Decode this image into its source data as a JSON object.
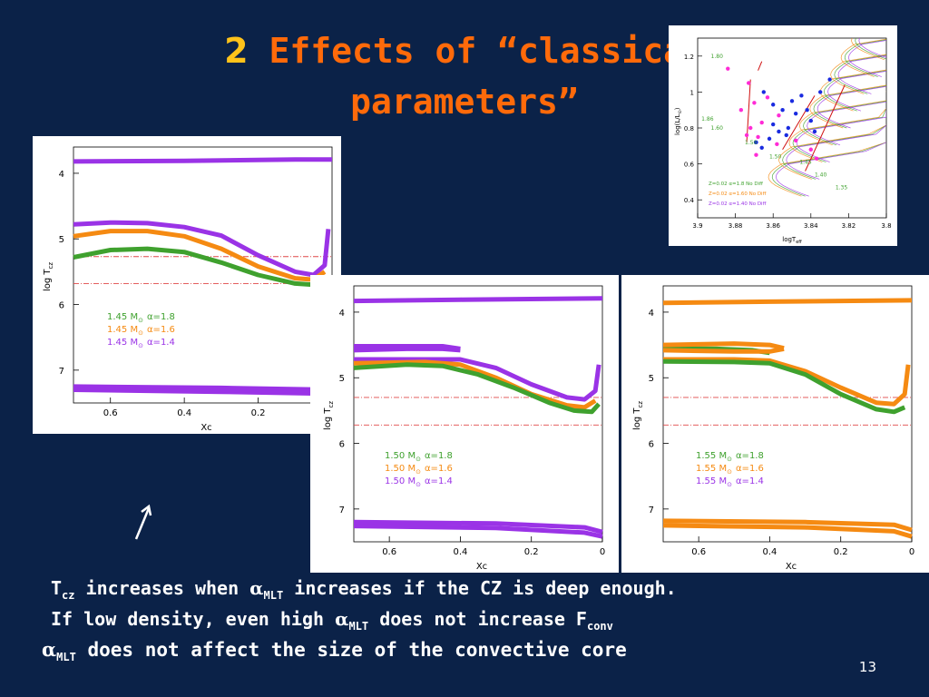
{
  "slide": {
    "title_num": "2",
    "title_line1": "Effects of “classical",
    "title_line2": "parameters”",
    "page_number": "13",
    "bullets": [
      {
        "pre": "T",
        "sub1": "cz",
        "mid": " increases when ",
        "alpha": "α",
        "sub2": "MLT",
        "post": " increases if the CZ is deep enough."
      },
      {
        "pre": "If low density, even high ",
        "alpha": "α",
        "sub2": "MLT",
        "mid": " does not increase F",
        "sub1": "conv",
        "post": ""
      },
      {
        "alpha": "α",
        "sub2": "MLT",
        "post": " does not affect the size of the convective core"
      }
    ]
  },
  "colors": {
    "background": "#0b2248",
    "title": "#ff6a0a",
    "title_num": "#ffc31a",
    "green": "#3fa12e",
    "orange": "#f58a12",
    "purple": "#9a33e6",
    "ref_line": "#e04848",
    "text": "#ffffff"
  },
  "chart_data": [
    {
      "id": "panel-145",
      "type": "line",
      "xlabel": "Xc",
      "ylabel": "log T",
      "ylabel_sub": "cz",
      "xlim": [
        0.7,
        0.0
      ],
      "ylim": [
        7.5,
        3.6
      ],
      "xticks": [
        "0.6",
        "0.4",
        "0.2"
      ],
      "yticks": [
        "4",
        "5",
        "6",
        "7"
      ],
      "legend": [
        {
          "mass": "1.45",
          "sym": "M",
          "sun": "⊙",
          "alpha": "α=1.8",
          "color": "#3fa12e"
        },
        {
          "mass": "1.45",
          "sym": "M",
          "sun": "⊙",
          "alpha": "α=1.6",
          "color": "#f58a12"
        },
        {
          "mass": "1.45",
          "sym": "M",
          "sun": "⊙",
          "alpha": "α=1.4",
          "color": "#9a33e6"
        }
      ],
      "series": [
        {
          "color": "#9a33e6",
          "points": [
            [
              0.7,
              4.78
            ],
            [
              0.6,
              4.75
            ],
            [
              0.5,
              4.76
            ],
            [
              0.4,
              4.82
            ],
            [
              0.3,
              4.95
            ],
            [
              0.2,
              5.25
            ],
            [
              0.1,
              5.5
            ],
            [
              0.05,
              5.55
            ],
            [
              0.02,
              5.4
            ],
            [
              0.01,
              4.85
            ]
          ]
        },
        {
          "color": "#f58a12",
          "points": [
            [
              0.7,
              4.96
            ],
            [
              0.6,
              4.88
            ],
            [
              0.5,
              4.88
            ],
            [
              0.4,
              4.96
            ],
            [
              0.3,
              5.15
            ],
            [
              0.2,
              5.42
            ],
            [
              0.1,
              5.6
            ],
            [
              0.05,
              5.62
            ],
            [
              0.02,
              5.5
            ]
          ]
        },
        {
          "color": "#3fa12e",
          "points": [
            [
              0.7,
              5.28
            ],
            [
              0.6,
              5.17
            ],
            [
              0.5,
              5.15
            ],
            [
              0.4,
              5.2
            ],
            [
              0.3,
              5.36
            ],
            [
              0.2,
              5.55
            ],
            [
              0.1,
              5.68
            ],
            [
              0.05,
              5.7
            ],
            [
              0.02,
              5.65
            ]
          ]
        },
        {
          "color": "#9a33e6",
          "points": [
            [
              0.7,
              3.82
            ],
            [
              0.4,
              3.81
            ],
            [
              0.1,
              3.79
            ],
            [
              0.0,
              3.79
            ]
          ]
        },
        {
          "color": "#9a33e6",
          "points": [
            [
              0.7,
              7.25
            ],
            [
              0.3,
              7.27
            ],
            [
              0.0,
              7.3
            ]
          ]
        },
        {
          "color": "#9a33e6",
          "points": [
            [
              0.7,
              7.3
            ],
            [
              0.3,
              7.33
            ],
            [
              0.0,
              7.36
            ]
          ]
        }
      ],
      "ref_lines": [
        5.27,
        5.68
      ]
    },
    {
      "id": "panel-150",
      "type": "line",
      "xlabel": "Xc",
      "ylabel": "log T",
      "ylabel_sub": "cz",
      "xlim": [
        0.7,
        0.0
      ],
      "ylim": [
        7.5,
        3.6
      ],
      "xticks": [
        "0.6",
        "0.4",
        "0.2",
        "0"
      ],
      "yticks": [
        "4",
        "5",
        "6",
        "7"
      ],
      "legend": [
        {
          "mass": "1.50",
          "sym": "M",
          "sun": "⊙",
          "alpha": "α=1.8",
          "color": "#3fa12e"
        },
        {
          "mass": "1.50",
          "sym": "M",
          "sun": "⊙",
          "alpha": "α=1.6",
          "color": "#f58a12"
        },
        {
          "mass": "1.50",
          "sym": "M",
          "sun": "⊙",
          "alpha": "α=1.4",
          "color": "#9a33e6"
        }
      ],
      "series": [
        {
          "color": "#9a33e6",
          "points": [
            [
              0.7,
              4.58
            ],
            [
              0.55,
              4.56
            ],
            [
              0.45,
              4.56
            ],
            [
              0.4,
              4.58
            ]
          ]
        },
        {
          "color": "#9a33e6",
          "points": [
            [
              0.7,
              4.52
            ],
            [
              0.55,
              4.52
            ],
            [
              0.45,
              4.52
            ],
            [
              0.4,
              4.56
            ]
          ]
        },
        {
          "color": "#9a33e6",
          "points": [
            [
              0.7,
              4.72
            ],
            [
              0.5,
              4.72
            ],
            [
              0.4,
              4.72
            ],
            [
              0.3,
              4.85
            ],
            [
              0.2,
              5.1
            ],
            [
              0.1,
              5.3
            ],
            [
              0.05,
              5.33
            ],
            [
              0.02,
              5.2
            ],
            [
              0.01,
              4.8
            ]
          ]
        },
        {
          "color": "#f58a12",
          "points": [
            [
              0.7,
              4.78
            ],
            [
              0.5,
              4.76
            ],
            [
              0.4,
              4.8
            ],
            [
              0.3,
              5.0
            ],
            [
              0.2,
              5.25
            ],
            [
              0.1,
              5.42
            ],
            [
              0.05,
              5.45
            ],
            [
              0.02,
              5.35
            ]
          ]
        },
        {
          "color": "#3fa12e",
          "points": [
            [
              0.7,
              4.85
            ],
            [
              0.55,
              4.8
            ],
            [
              0.45,
              4.82
            ],
            [
              0.35,
              4.95
            ],
            [
              0.25,
              5.15
            ],
            [
              0.15,
              5.38
            ],
            [
              0.08,
              5.5
            ],
            [
              0.03,
              5.52
            ],
            [
              0.01,
              5.4
            ]
          ]
        },
        {
          "color": "#9a33e6",
          "points": [
            [
              0.7,
              3.83
            ],
            [
              0.4,
              3.81
            ],
            [
              0.0,
              3.79
            ]
          ]
        },
        {
          "color": "#9a33e6",
          "points": [
            [
              0.7,
              7.2
            ],
            [
              0.3,
              7.22
            ],
            [
              0.05,
              7.28
            ],
            [
              0.0,
              7.35
            ]
          ]
        },
        {
          "color": "#9a33e6",
          "points": [
            [
              0.7,
              7.26
            ],
            [
              0.3,
              7.29
            ],
            [
              0.05,
              7.36
            ],
            [
              0.0,
              7.42
            ]
          ]
        }
      ],
      "ref_lines": [
        5.3,
        5.72
      ]
    },
    {
      "id": "panel-155",
      "type": "line",
      "xlabel": "Xc",
      "ylabel": "log T",
      "ylabel_sub": "cz",
      "xlim": [
        0.7,
        0.0
      ],
      "ylim": [
        7.5,
        3.6
      ],
      "xticks": [
        "0.6",
        "0.4",
        "0.2",
        "0"
      ],
      "yticks": [
        "4",
        "5",
        "6",
        "7"
      ],
      "legend": [
        {
          "mass": "1.55",
          "sym": "M",
          "sun": "⊙",
          "alpha": "α=1.8",
          "color": "#3fa12e"
        },
        {
          "mass": "1.55",
          "sym": "M",
          "sun": "⊙",
          "alpha": "α=1.6",
          "color": "#f58a12"
        },
        {
          "mass": "1.55",
          "sym": "M",
          "sun": "⊙",
          "alpha": "α=1.4",
          "color": "#9a33e6"
        }
      ],
      "series": [
        {
          "color": "#3fa12e",
          "points": [
            [
              0.7,
              4.55
            ],
            [
              0.55,
              4.56
            ],
            [
              0.45,
              4.58
            ],
            [
              0.4,
              4.62
            ]
          ]
        },
        {
          "color": "#f58a12",
          "points": [
            [
              0.7,
              4.5
            ],
            [
              0.5,
              4.48
            ],
            [
              0.4,
              4.5
            ],
            [
              0.36,
              4.55
            ]
          ]
        },
        {
          "color": "#f58a12",
          "points": [
            [
              0.7,
              4.58
            ],
            [
              0.5,
              4.6
            ],
            [
              0.4,
              4.6
            ],
            [
              0.36,
              4.56
            ]
          ]
        },
        {
          "color": "#f58a12",
          "points": [
            [
              0.7,
              4.72
            ],
            [
              0.5,
              4.72
            ],
            [
              0.4,
              4.74
            ],
            [
              0.3,
              4.9
            ],
            [
              0.2,
              5.15
            ],
            [
              0.1,
              5.38
            ],
            [
              0.05,
              5.4
            ],
            [
              0.02,
              5.25
            ],
            [
              0.01,
              4.8
            ]
          ]
        },
        {
          "color": "#3fa12e",
          "points": [
            [
              0.7,
              4.75
            ],
            [
              0.5,
              4.76
            ],
            [
              0.4,
              4.78
            ],
            [
              0.3,
              4.95
            ],
            [
              0.2,
              5.25
            ],
            [
              0.1,
              5.48
            ],
            [
              0.05,
              5.52
            ],
            [
              0.02,
              5.45
            ]
          ]
        },
        {
          "color": "#f58a12",
          "points": [
            [
              0.7,
              3.86
            ],
            [
              0.4,
              3.84
            ],
            [
              0.0,
              3.82
            ]
          ]
        },
        {
          "color": "#f58a12",
          "points": [
            [
              0.7,
              7.18
            ],
            [
              0.3,
              7.2
            ],
            [
              0.05,
              7.24
            ],
            [
              0.0,
              7.32
            ]
          ]
        },
        {
          "color": "#f58a12",
          "points": [
            [
              0.7,
              7.25
            ],
            [
              0.3,
              7.28
            ],
            [
              0.05,
              7.34
            ],
            [
              0.0,
              7.42
            ]
          ]
        }
      ],
      "ref_lines": [
        5.3,
        5.72
      ]
    },
    {
      "id": "panel-hr",
      "type": "scatter",
      "xlabel": "logT",
      "xlabel_sub": "eff",
      "ylabel": "log(L/L",
      "ylabel_sun": "⊙",
      "ylabel_end": ")",
      "xlim": [
        3.9,
        3.8
      ],
      "ylim": [
        0.3,
        1.3
      ],
      "xticks": [
        "3.9",
        "3.88",
        "3.86",
        "3.84",
        "3.82",
        "3.8"
      ],
      "yticks": [
        "0.4",
        "0.6",
        "0.8",
        "1",
        "1.2"
      ],
      "legend": [
        {
          "text": "Z=0.02 α=1.8 No Diff",
          "color": "#3fa12e"
        },
        {
          "text": "Z=0.02 α=1.60 No Diff",
          "color": "#f58a12"
        },
        {
          "text": "Z=0.02 α=1.40 No Diff",
          "color": "#9a33e6"
        }
      ],
      "mass_labels": [
        {
          "text": "1.80",
          "x": 3.893,
          "y": 1.19,
          "color": "#3fa12e"
        },
        {
          "text": "1.86",
          "x": 3.898,
          "y": 0.84,
          "color": "#3fa12e"
        },
        {
          "text": "1.60",
          "x": 3.893,
          "y": 0.79,
          "color": "#3fa12e"
        },
        {
          "text": "1.50",
          "x": 3.875,
          "y": 0.71,
          "color": "#3fa12e"
        },
        {
          "text": "1.50",
          "x": 3.862,
          "y": 0.63,
          "color": "#3fa12e"
        },
        {
          "text": "1.45",
          "x": 3.846,
          "y": 0.6,
          "color": "#3fa12e"
        },
        {
          "text": "1.40",
          "x": 3.838,
          "y": 0.53,
          "color": "#3fa12e"
        },
        {
          "text": "1.35",
          "x": 3.827,
          "y": 0.46,
          "color": "#3fa12e"
        }
      ],
      "stars_blue": [
        [
          3.865,
          1.0
        ],
        [
          3.86,
          0.93
        ],
        [
          3.855,
          0.9
        ],
        [
          3.85,
          0.95
        ],
        [
          3.848,
          0.88
        ],
        [
          3.845,
          0.98
        ],
        [
          3.852,
          0.8
        ],
        [
          3.857,
          0.78
        ],
        [
          3.862,
          0.74
        ],
        [
          3.866,
          0.69
        ],
        [
          3.869,
          0.72
        ],
        [
          3.842,
          0.9
        ],
        [
          3.84,
          0.84
        ],
        [
          3.838,
          0.78
        ],
        [
          3.835,
          1.0
        ],
        [
          3.83,
          1.07
        ],
        [
          3.86,
          0.82
        ],
        [
          3.853,
          0.76
        ]
      ],
      "stars_magenta": [
        [
          3.884,
          1.13
        ],
        [
          3.873,
          1.05
        ],
        [
          3.863,
          0.97
        ],
        [
          3.87,
          0.94
        ],
        [
          3.857,
          0.87
        ],
        [
          3.866,
          0.83
        ],
        [
          3.872,
          0.8
        ],
        [
          3.868,
          0.75
        ],
        [
          3.874,
          0.76
        ],
        [
          3.858,
          0.71
        ],
        [
          3.848,
          0.73
        ],
        [
          3.84,
          0.68
        ],
        [
          3.837,
          0.63
        ],
        [
          3.869,
          0.65
        ],
        [
          3.877,
          0.9
        ]
      ]
    }
  ]
}
